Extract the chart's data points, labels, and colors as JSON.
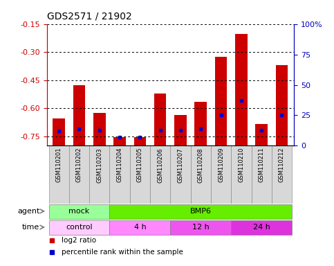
{
  "title": "GDS2571 / 21902",
  "samples": [
    "GSM110201",
    "GSM110202",
    "GSM110203",
    "GSM110204",
    "GSM110205",
    "GSM110206",
    "GSM110207",
    "GSM110208",
    "GSM110209",
    "GSM110210",
    "GSM110211",
    "GSM110212"
  ],
  "log2_ratio": [
    -0.655,
    -0.475,
    -0.625,
    -0.755,
    -0.755,
    -0.52,
    -0.635,
    -0.565,
    -0.325,
    -0.205,
    -0.685,
    -0.37
  ],
  "percentile": [
    12,
    14,
    13,
    7,
    7,
    13,
    13,
    14,
    25,
    37,
    13,
    25
  ],
  "ylim_left": [
    -0.8,
    -0.15
  ],
  "ylim_right": [
    0,
    100
  ],
  "yticks_left": [
    -0.75,
    -0.6,
    -0.45,
    -0.3,
    -0.15
  ],
  "yticks_right": [
    0,
    25,
    50,
    75,
    100
  ],
  "ytick_labels_left": [
    "-0.75",
    "-0.60",
    "-0.45",
    "-0.30",
    "-0.15"
  ],
  "ytick_labels_right": [
    "0",
    "25",
    "50",
    "75",
    "100%"
  ],
  "bar_color": "#cc0000",
  "blue_color": "#0000cc",
  "agent_groups": [
    {
      "label": "mock",
      "start": 0,
      "end": 3,
      "color": "#99ff99"
    },
    {
      "label": "BMP6",
      "start": 3,
      "end": 12,
      "color": "#66ee00"
    }
  ],
  "time_groups": [
    {
      "label": "control",
      "start": 0,
      "end": 3,
      "color": "#ffccff"
    },
    {
      "label": "4 h",
      "start": 3,
      "end": 6,
      "color": "#ff88ff"
    },
    {
      "label": "12 h",
      "start": 6,
      "end": 9,
      "color": "#ee55ee"
    },
    {
      "label": "24 h",
      "start": 9,
      "end": 12,
      "color": "#dd33dd"
    }
  ],
  "legend_items": [
    {
      "label": "log2 ratio",
      "color": "#cc0000"
    },
    {
      "label": "percentile rank within the sample",
      "color": "#0000cc"
    }
  ],
  "background_color": "#ffffff",
  "left_tick_color": "#cc0000",
  "right_tick_color": "#0000bb"
}
